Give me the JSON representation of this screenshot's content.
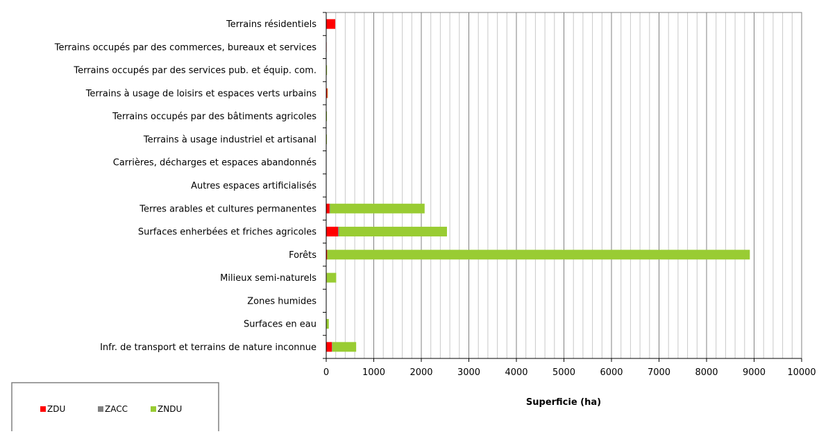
{
  "chart_data": {
    "type": "bar",
    "orientation": "horizontal",
    "stacked": true,
    "categories": [
      "Terrains résidentiels",
      "Terrains occupés par des commerces, bureaux et services",
      "Terrains occupés par des services pub. et équip. com.",
      "Terrains à usage de loisirs et espaces verts urbains",
      "Terrains occupés par des bâtiments agricoles",
      "Terrains à usage industriel et artisanal",
      "Carrières, décharges et espaces abandonnés",
      "Autres espaces artificialisés",
      "Terres arables et cultures permanentes",
      "Surfaces enherbées et friches agricoles",
      "Forêts",
      "Milieux semi-naturels",
      "Zones humides",
      "Surfaces en eau",
      "Infr. de transport et terrains de nature inconnue"
    ],
    "series": [
      {
        "name": "ZDU",
        "color": "#ff0000",
        "values": [
          190,
          5,
          8,
          25,
          5,
          5,
          0,
          0,
          70,
          250,
          20,
          10,
          0,
          5,
          120
        ]
      },
      {
        "name": "ZACC",
        "color": "#808080",
        "values": [
          0,
          0,
          0,
          0,
          0,
          0,
          0,
          0,
          10,
          20,
          0,
          0,
          0,
          0,
          10
        ]
      },
      {
        "name": "ZNDU",
        "color": "#99cc33",
        "values": [
          0,
          0,
          5,
          5,
          10,
          5,
          0,
          0,
          1990,
          2270,
          8890,
          200,
          0,
          50,
          500
        ]
      }
    ],
    "xlabel": "Superficie (ha)",
    "ylabel": "",
    "xlim": [
      0,
      10000
    ],
    "x_ticks": [
      0,
      1000,
      2000,
      3000,
      4000,
      5000,
      6000,
      7000,
      8000,
      9000,
      10000
    ],
    "minor_gridlines_per_major": 5,
    "grid": true,
    "legend_position": "bottom-left"
  }
}
